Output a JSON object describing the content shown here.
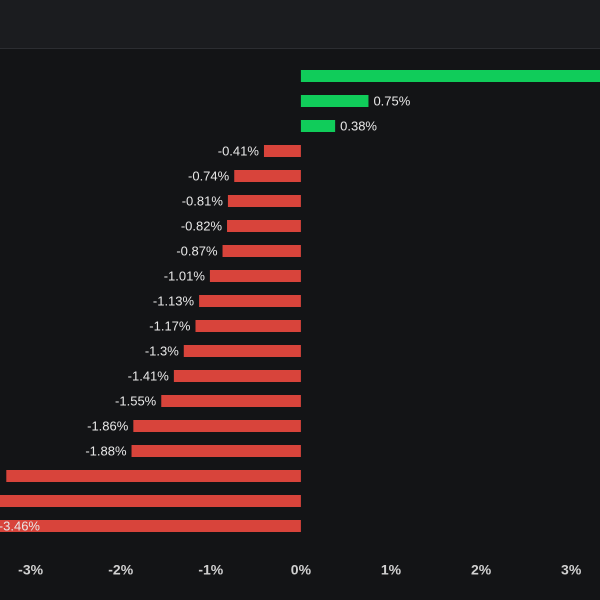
{
  "chart_data": {
    "type": "barh",
    "values": [
      3.5,
      0.75,
      0.38,
      -0.41,
      -0.74,
      -0.81,
      -0.82,
      -0.87,
      -1.01,
      -1.13,
      -1.17,
      -1.3,
      -1.41,
      -1.55,
      -1.86,
      -1.88,
      -3.27,
      -3.4,
      -3.46
    ],
    "value_labels": [
      null,
      "0.75%",
      "0.38%",
      "-0.41%",
      "-0.74%",
      "-0.81%",
      "-0.82%",
      "-0.87%",
      "-1.01%",
      "-1.13%",
      "-1.17%",
      "-1.3%",
      "-1.41%",
      "-1.55%",
      "-1.86%",
      "-1.88%",
      null,
      null,
      "-3.46%"
    ],
    "positive_color": "#10cc5a",
    "negative_color": "#d8443b",
    "xlim": [
      -3.34,
      3.32
    ],
    "xticks": [
      {
        "value": -3,
        "label": "-3%"
      },
      {
        "value": -2,
        "label": "-2%"
      },
      {
        "value": -1,
        "label": "-1%"
      },
      {
        "value": 0,
        "label": "0%"
      },
      {
        "value": 1,
        "label": "1%"
      },
      {
        "value": 2,
        "label": "2%"
      },
      {
        "value": 3,
        "label": "3%"
      }
    ]
  }
}
